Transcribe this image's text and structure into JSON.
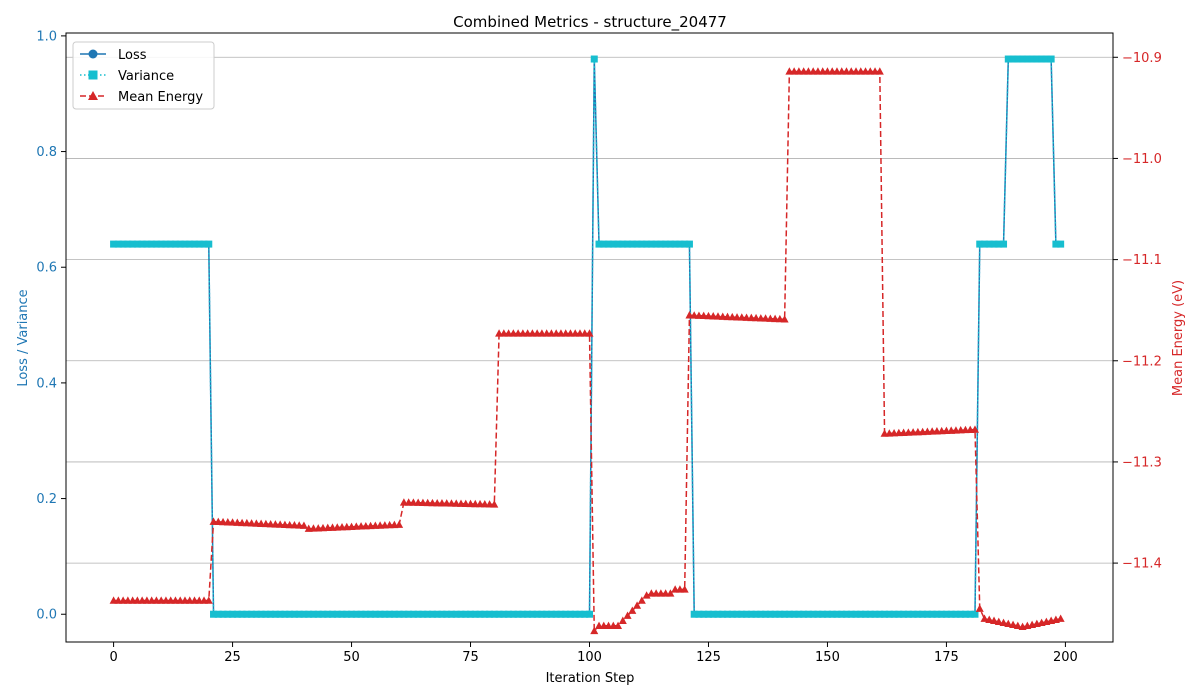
{
  "chart_data": {
    "type": "line",
    "title": "Combined Metrics - structure_20477",
    "xlabel": "Iteration Step",
    "ylabel_left": "Loss / Variance",
    "ylabel_right": "Mean Energy (eV)",
    "xlim": [
      -10,
      210
    ],
    "ylim_left": [
      -0.048,
      1.005
    ],
    "ylim_right": [
      -11.478,
      -10.876
    ],
    "x_ticks": [
      0,
      25,
      50,
      75,
      100,
      125,
      150,
      175,
      200
    ],
    "y_ticks_left": [
      0.0,
      0.2,
      0.4,
      0.6,
      0.8,
      1.0
    ],
    "y_ticks_right": [
      -11.4,
      -11.3,
      -11.2,
      -11.1,
      -11.0,
      -10.9
    ],
    "y_tick_labels_left": [
      "0.0",
      "0.2",
      "0.4",
      "0.6",
      "0.8",
      "1.0"
    ],
    "y_tick_labels_right": [
      "−11.4",
      "−11.3",
      "−11.2",
      "−11.1",
      "−11.0",
      "−10.9"
    ],
    "grid": "horizontal (right axis)",
    "legend_position": "top-left",
    "colors": {
      "loss": "#1f77b4",
      "variance": "#17becf",
      "energy": "#d62728",
      "left_axis": "#1f77b4",
      "right_axis": "#d62728",
      "grid": "#b0b0b0"
    },
    "series": [
      {
        "name": "Loss",
        "axis": "left",
        "segments": [
          {
            "from": 0,
            "to": 20,
            "value": 0.64
          },
          {
            "from": 21,
            "to": 100,
            "value": 0.0
          },
          {
            "from": 101,
            "to": 101,
            "value": 0.96
          },
          {
            "from": 102,
            "to": 121,
            "value": 0.64
          },
          {
            "from": 122,
            "to": 181,
            "value": 0.0
          },
          {
            "from": 182,
            "to": 187,
            "value": 0.64
          },
          {
            "from": 188,
            "to": 197,
            "value": 0.96
          },
          {
            "from": 198,
            "to": 199,
            "value": 0.64
          }
        ]
      },
      {
        "name": "Variance",
        "axis": "left",
        "segments": [
          {
            "from": 0,
            "to": 20,
            "value": 0.64
          },
          {
            "from": 21,
            "to": 100,
            "value": 0.0
          },
          {
            "from": 101,
            "to": 101,
            "value": 0.96
          },
          {
            "from": 102,
            "to": 121,
            "value": 0.64
          },
          {
            "from": 122,
            "to": 181,
            "value": 0.0
          },
          {
            "from": 182,
            "to": 187,
            "value": 0.64
          },
          {
            "from": 188,
            "to": 197,
            "value": 0.96
          },
          {
            "from": 198,
            "to": 199,
            "value": 0.64
          }
        ]
      },
      {
        "name": "Mean Energy",
        "axis": "right",
        "segments": [
          {
            "from": 0,
            "to": 20,
            "value": -11.437
          },
          {
            "from": 21,
            "to": 40,
            "start": -11.359,
            "end": -11.363
          },
          {
            "from": 41,
            "to": 60,
            "start": -11.366,
            "end": -11.362
          },
          {
            "from": 61,
            "to": 80,
            "start": -11.34,
            "end": -11.342
          },
          {
            "from": 81,
            "to": 100,
            "value": -11.173
          },
          {
            "from": 101,
            "to": 101,
            "value": -11.467
          },
          {
            "from": 102,
            "to": 106,
            "value": -11.462
          },
          {
            "from": 107,
            "to": 112,
            "start": -11.457,
            "end": -11.432
          },
          {
            "from": 113,
            "to": 117,
            "value": -11.43
          },
          {
            "from": 118,
            "to": 120,
            "value": -11.426
          },
          {
            "from": 121,
            "to": 141,
            "start": -11.155,
            "end": -11.159
          },
          {
            "from": 142,
            "to": 161,
            "value": -10.914
          },
          {
            "from": 162,
            "to": 181,
            "start": -11.272,
            "end": -11.268
          },
          {
            "from": 182,
            "to": 182,
            "value": -11.445
          },
          {
            "from": 183,
            "to": 199,
            "shape": "dip",
            "start": -11.455,
            "mid": -11.463,
            "end": -11.455
          }
        ]
      }
    ]
  }
}
